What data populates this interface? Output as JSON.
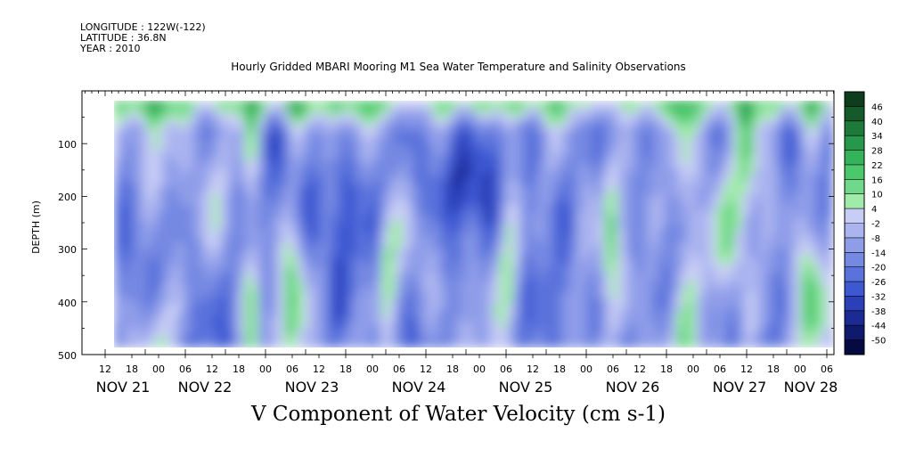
{
  "header": {
    "longitude": "LONGITUDE : 122W(-122)",
    "latitude": "LATITUDE : 36.8N",
    "year": "YEAR : 2010"
  },
  "chart_data": {
    "type": "heatmap",
    "title": "Hourly Gridded MBARI Mooring M1 Sea Water Temperature and Salinity Observations",
    "colorbar_title": "V Component of Water Velocity (cm s-1)",
    "ylabel": "DEPTH (m)",
    "y_axis_reversed": true,
    "ylim": [
      500,
      0
    ],
    "y_ticks": [
      100,
      200,
      300,
      400,
      500
    ],
    "x_hour_ticks": [
      "12",
      "18",
      "00",
      "06",
      "12",
      "18",
      "00",
      "06",
      "12",
      "18",
      "00",
      "06",
      "12",
      "18",
      "00",
      "06",
      "12",
      "18",
      "00",
      "06",
      "12",
      "18",
      "00",
      "06",
      "12",
      "18",
      "00",
      "06"
    ],
    "x_day_labels": [
      "NOV 21",
      "NOV 22",
      "NOV 23",
      "NOV 24",
      "NOV 25",
      "NOV 26",
      "NOV 27",
      "NOV 28"
    ],
    "colorbar_levels": [
      46,
      40,
      34,
      28,
      22,
      16,
      10,
      4,
      -2,
      -8,
      -14,
      -20,
      -26,
      -32,
      -38,
      -44,
      -50
    ],
    "colorbar_colors": [
      "#0d3d1d",
      "#145a2a",
      "#1d7a3a",
      "#27984b",
      "#34b35a",
      "#4cc86c",
      "#6fd88a",
      "#a0eaaa",
      "#c8cdf5",
      "#aab4ef",
      "#8f9de9",
      "#7588e2",
      "#5a72dc",
      "#3e58d2",
      "#2a3fb8",
      "#1c2a94",
      "#0f1a6c",
      "#050a40"
    ],
    "approximate_bands_x_hours": [
      {
        "from_hour": 0,
        "to_hour": 10,
        "top_band": "positive",
        "deep": "negative"
      },
      {
        "from_hour": 64,
        "to_hour": 66,
        "column": "positive"
      },
      {
        "from_hour": 100,
        "to_hour": 104,
        "column": "positive"
      },
      {
        "from_hour": 150,
        "to_hour": 166,
        "deep": "positive"
      }
    ]
  }
}
